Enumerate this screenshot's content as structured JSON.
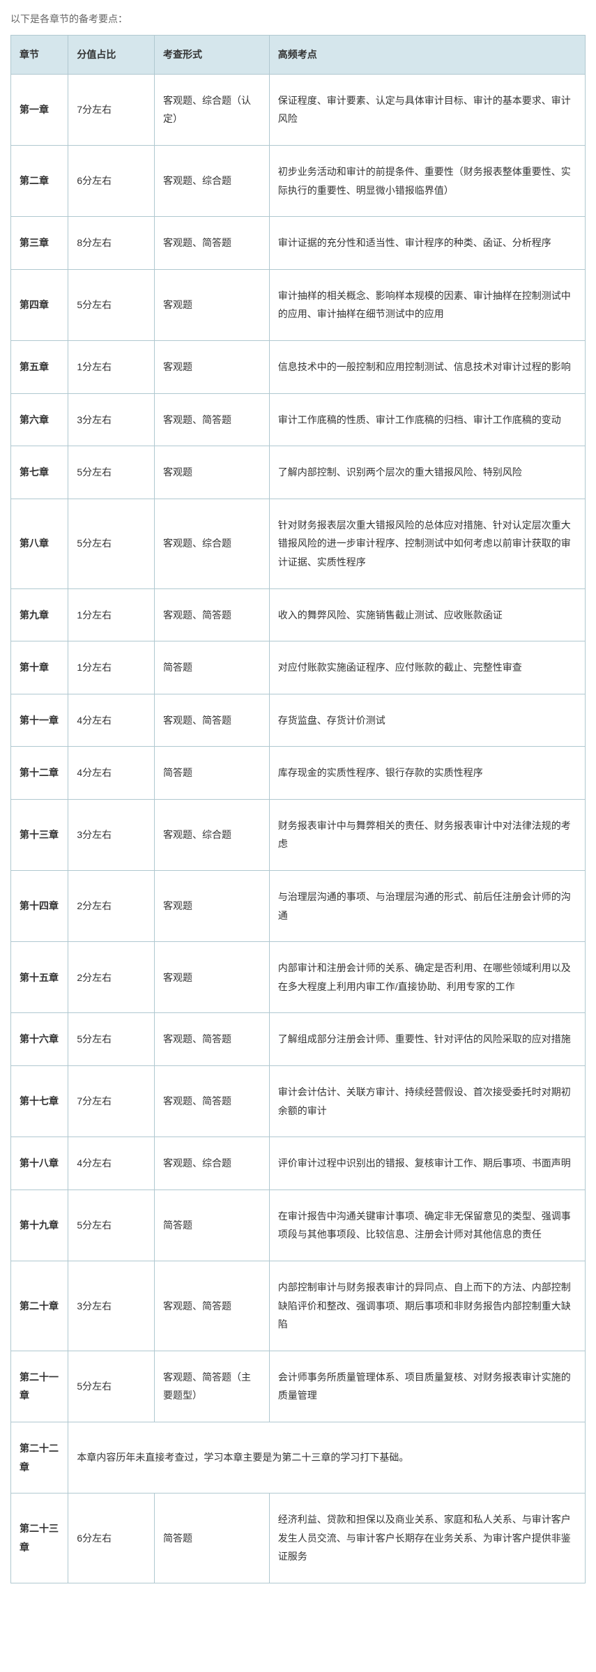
{
  "intro": "以下是各章节的备考要点：",
  "headers": {
    "chapter": "章节",
    "score": "分值占比",
    "format": "考查形式",
    "points": "高频考点"
  },
  "rows": [
    {
      "chapter": "第一章",
      "score": "7分左右",
      "format": "客观题、综合题（认定）",
      "points": "保证程度、审计要素、认定与具体审计目标、审计的基本要求、审计风险"
    },
    {
      "chapter": "第二章",
      "score": "6分左右",
      "format": "客观题、综合题",
      "points": "初步业务活动和审计的前提条件、重要性（财务报表整体重要性、实际执行的重要性、明显微小错报临界值）"
    },
    {
      "chapter": "第三章",
      "score": "8分左右",
      "format": "客观题、简答题",
      "points": "审计证据的充分性和适当性、审计程序的种类、函证、分析程序"
    },
    {
      "chapter": "第四章",
      "score": "5分左右",
      "format": "客观题",
      "points": "审计抽样的相关概念、影响样本规模的因素、审计抽样在控制测试中的应用、审计抽样在细节测试中的应用"
    },
    {
      "chapter": "第五章",
      "score": "1分左右",
      "format": "客观题",
      "points": "信息技术中的一般控制和应用控制测试、信息技术对审计过程的影响"
    },
    {
      "chapter": "第六章",
      "score": "3分左右",
      "format": "客观题、简答题",
      "points": "审计工作底稿的性质、审计工作底稿的归档、审计工作底稿的变动"
    },
    {
      "chapter": "第七章",
      "score": "5分左右",
      "format": "客观题",
      "points": "了解内部控制、识别两个层次的重大错报风险、特别风险"
    },
    {
      "chapter": "第八章",
      "score": "5分左右",
      "format": "客观题、综合题",
      "points": "针对财务报表层次重大错报风险的总体应对措施、针对认定层次重大错报风险的进一步审计程序、控制测试中如何考虑以前审计获取的审计证据、实质性程序"
    },
    {
      "chapter": "第九章",
      "score": "1分左右",
      "format": "客观题、简答题",
      "points": "收入的舞弊风险、实施销售截止测试、应收账款函证"
    },
    {
      "chapter": "第十章",
      "score": "1分左右",
      "format": "简答题",
      "points": "对应付账款实施函证程序、应付账款的截止、完整性审查"
    },
    {
      "chapter": "第十一章",
      "score": "4分左右",
      "format": "客观题、简答题",
      "points": "存货监盘、存货计价测试"
    },
    {
      "chapter": "第十二章",
      "score": "4分左右",
      "format": "简答题",
      "points": "库存现金的实质性程序、银行存款的实质性程序"
    },
    {
      "chapter": "第十三章",
      "score": "3分左右",
      "format": "客观题、综合题",
      "points": "财务报表审计中与舞弊相关的责任、财务报表审计中对法律法规的考虑"
    },
    {
      "chapter": "第十四章",
      "score": "2分左右",
      "format": "客观题",
      "points": "与治理层沟通的事项、与治理层沟通的形式、前后任注册会计师的沟通"
    },
    {
      "chapter": "第十五章",
      "score": "2分左右",
      "format": "客观题",
      "points": "内部审计和注册会计师的关系、确定是否利用、在哪些领域利用以及在多大程度上利用内审工作/直接协助、利用专家的工作"
    },
    {
      "chapter": "第十六章",
      "score": "5分左右",
      "format": "客观题、简答题",
      "points": "了解组成部分注册会计师、重要性、针对评估的风险采取的应对措施"
    },
    {
      "chapter": "第十七章",
      "score": "7分左右",
      "format": "客观题、简答题",
      "points": "审计会计估计、关联方审计、持续经营假设、首次接受委托时对期初余额的审计"
    },
    {
      "chapter": "第十八章",
      "score": "4分左右",
      "format": "客观题、综合题",
      "points": "评价审计过程中识别出的错报、复核审计工作、期后事项、书面声明"
    },
    {
      "chapter": "第十九章",
      "score": "5分左右",
      "format": "简答题",
      "points": "在审计报告中沟通关键审计事项、确定非无保留意见的类型、强调事项段与其他事项段、比较信息、注册会计师对其他信息的责任"
    },
    {
      "chapter": "第二十章",
      "score": "3分左右",
      "format": "客观题、简答题",
      "points": "内部控制审计与财务报表审计的异同点、自上而下的方法、内部控制缺陷评价和整改、强调事项、期后事项和非财务报告内部控制重大缺陷"
    },
    {
      "chapter": "第二十一章",
      "score": "5分左右",
      "format": "客观题、简答题（主要题型）",
      "points": "会计师事务所质量管理体系、项目质量复核、对财务报表审计实施的质量管理"
    },
    {
      "chapter": "第二十二章",
      "merged": "本章内容历年未直接考查过，学习本章主要是为第二十三章的学习打下基础。"
    },
    {
      "chapter": "第二十三章",
      "score": "6分左右",
      "format": "简答题",
      "points": "经济利益、贷款和担保以及商业关系、家庭和私人关系、与审计客户发生人员交流、与审计客户长期存在业务关系、为审计客户提供非鉴证服务"
    }
  ]
}
